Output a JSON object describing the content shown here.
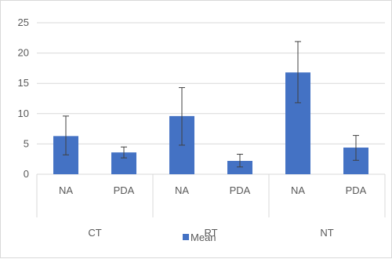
{
  "chart_data": {
    "type": "bar",
    "ylim": [
      0,
      25
    ],
    "y_ticks": [
      0,
      5,
      10,
      15,
      20,
      25
    ],
    "groups": [
      {
        "label": "CT",
        "categories": [
          "NA",
          "PDA"
        ]
      },
      {
        "label": "RT",
        "categories": [
          "NA",
          "PDA"
        ]
      },
      {
        "label": "NT",
        "categories": [
          "NA",
          "PDA"
        ]
      }
    ],
    "series": [
      {
        "name": "Mean",
        "values": [
          6.3,
          3.6,
          9.6,
          2.2,
          16.8,
          4.4
        ],
        "error_low": [
          3.2,
          2.7,
          4.8,
          1.2,
          11.8,
          2.3
        ],
        "error_high": [
          9.6,
          4.5,
          14.3,
          3.3,
          21.9,
          6.4
        ]
      }
    ],
    "grid": true,
    "legend_position": "bottom",
    "colors": {
      "bar": "#4472c4",
      "grid": "#d9d9d9",
      "error": "#404040",
      "text": "#595959"
    }
  }
}
